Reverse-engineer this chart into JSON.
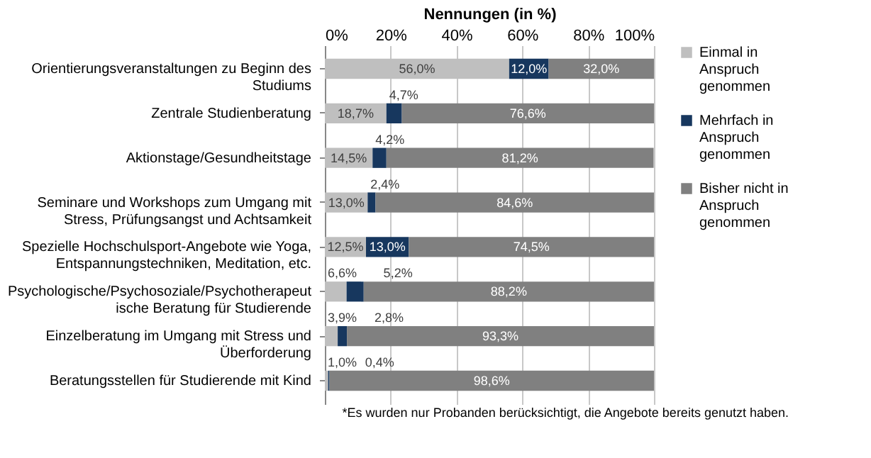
{
  "chart_data": {
    "type": "bar",
    "orientation": "horizontal",
    "stacked": true,
    "xlabel": "Nennungen (in %)",
    "categories": [
      "Orientierungsveranstaltungen zu Beginn des Studiums",
      "Zentrale Studienberatung",
      "Aktionstage/Gesundheitstage",
      "Seminare und Workshops zum Umgang mit Stress, Prüfungsangst und Achtsamkeit",
      "Spezielle Hochschulsport-Angebote wie Yoga, Entspannungstechniken, Meditation, etc.",
      "Psychologische/Psychosoziale/Psychotherapeutische Beratung für Studierende",
      "Einzelberatung im Umgang mit Stress und Überforderung",
      "Beratungsstellen für Studierende mit Kind"
    ],
    "series": [
      {
        "name": "Einmal in Anspruch genommen",
        "color": "#bfbfbf",
        "values": [
          56.0,
          18.7,
          14.5,
          13.0,
          12.5,
          6.6,
          3.9,
          1.0
        ],
        "value_labels": [
          "56,0%",
          "18,7%",
          "14,5%",
          "13,0%",
          "12,5%",
          "6,6%",
          "3,9%",
          "1,0%"
        ]
      },
      {
        "name": "Mehrfach in Anspruch genommen",
        "color": "#17375e",
        "values": [
          12.0,
          4.7,
          4.2,
          2.4,
          13.0,
          5.2,
          2.8,
          0.4
        ],
        "value_labels": [
          "12,0%",
          "4,7%",
          "4,2%",
          "2,4%",
          "13,0%",
          "5,2%",
          "2,8%",
          "0,4%"
        ]
      },
      {
        "name": "Bisher nicht in Anspruch genommen",
        "color": "#808080",
        "values": [
          32.0,
          76.6,
          81.2,
          84.6,
          74.5,
          88.2,
          93.3,
          98.6
        ],
        "value_labels": [
          "32,0%",
          "76,6%",
          "81,2%",
          "84,6%",
          "74,5%",
          "88,2%",
          "93,3%",
          "98,6%"
        ]
      }
    ],
    "xlim": [
      0,
      100
    ],
    "xticks": [
      {
        "value": 0,
        "label": "0%"
      },
      {
        "value": 20,
        "label": "20%"
      },
      {
        "value": 40,
        "label": "40%"
      },
      {
        "value": 60,
        "label": "60%"
      },
      {
        "value": 80,
        "label": "80%"
      },
      {
        "value": 100,
        "label": "100%"
      }
    ],
    "grid": "x",
    "legend": "right",
    "annotations": [
      "*Es wurden nur Probanden berücksichtigt, die Angebote bereits genutzt haben."
    ]
  }
}
